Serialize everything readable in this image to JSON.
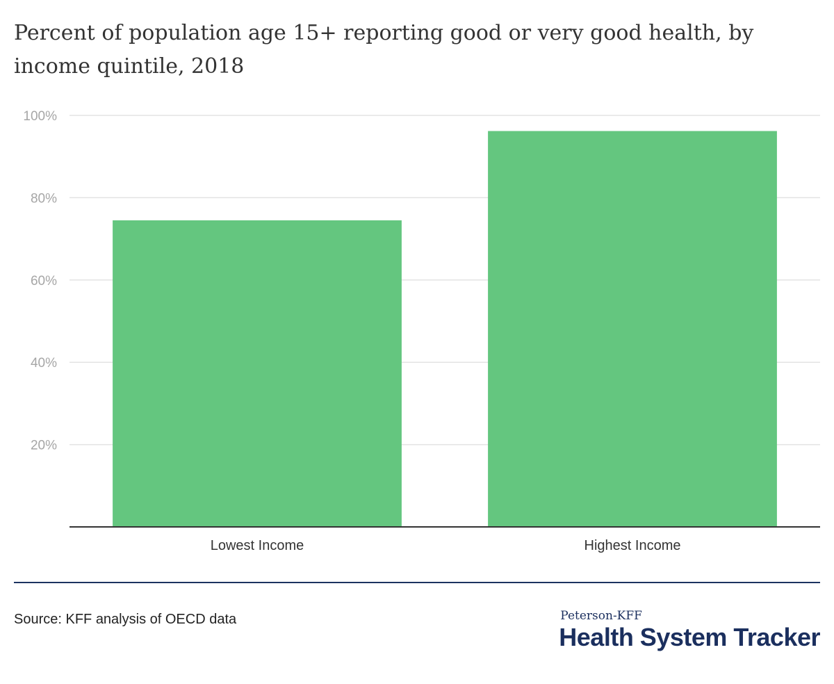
{
  "title": "Percent of population age 15+ reporting good or very good health, by income quintile, 2018",
  "source": "Source: KFF analysis of OECD data",
  "logo": {
    "top": "Peterson-KFF",
    "main": "Health System Tracker"
  },
  "colors": {
    "bar": "#64c67f",
    "grid": "#e3e3e3",
    "axis": "#333333",
    "footer_rule": "#1b3360",
    "logo": "#1b2f5e"
  },
  "chart_data": {
    "type": "bar",
    "categories": [
      "Lowest Income",
      "Highest Income"
    ],
    "values": [
      74.5,
      96.2
    ],
    "ytick_labels": [
      "20%",
      "40%",
      "60%",
      "80%",
      "100%"
    ],
    "yticks": [
      20,
      40,
      60,
      80,
      100
    ],
    "ylim": [
      0,
      100
    ],
    "grid": true,
    "legend": "none"
  }
}
